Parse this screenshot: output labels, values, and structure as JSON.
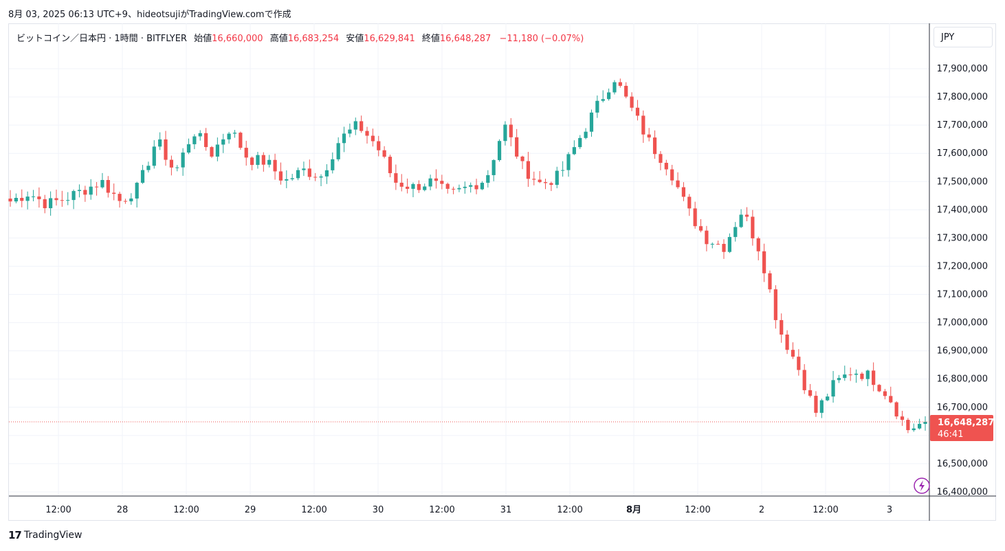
{
  "caption": "8月 03, 2025 06:13 UTC+9、hideotsujiがTradingView.comで作成",
  "legend": {
    "symbol": "ビットコイン／日本円 · 1時間 · BITFLYER",
    "open_label": "始値",
    "open": "16,660,000",
    "high_label": "高値",
    "high": "16,683,254",
    "low_label": "安値",
    "low": "16,629,841",
    "close_label": "終値",
    "close": "16,648,287",
    "change": "−11,180 (−0.07%)"
  },
  "currency": "JPY",
  "price_tag": {
    "price": "16,648,287",
    "countdown": "46:41"
  },
  "footer": {
    "brand": "TradingView"
  },
  "colors": {
    "up": "#26a69a",
    "down": "#ef5350",
    "grid": "#f0f3fa",
    "text": "#131722",
    "tag": "#ef5350",
    "flash": "#9c27b0"
  },
  "chart_data": {
    "type": "candlestick",
    "currency": "JPY",
    "interval": "1時間",
    "exchange": "BITFLYER",
    "ylim": [
      16400000,
      17950000
    ],
    "y_ticks": [
      "16,400,000",
      "16,500,000",
      "16,600,000",
      "16,700,000",
      "16,800,000",
      "16,900,000",
      "17,000,000",
      "17,100,000",
      "17,200,000",
      "17,300,000",
      "17,400,000",
      "17,500,000",
      "17,600,000",
      "17,700,000",
      "17,800,000",
      "17,900,000"
    ],
    "y_tick_values": [
      16400000,
      16500000,
      16600000,
      16700000,
      16800000,
      16900000,
      17000000,
      17100000,
      17200000,
      17300000,
      17400000,
      17500000,
      17600000,
      17700000,
      17800000,
      17900000
    ],
    "x_tick_labels": [
      "12:00",
      "28",
      "12:00",
      "29",
      "12:00",
      "30",
      "12:00",
      "31",
      "12:00",
      "8月",
      "12:00",
      "2",
      "12:00",
      "3"
    ],
    "x_tick_bold": [
      false,
      false,
      false,
      false,
      false,
      false,
      false,
      false,
      false,
      true,
      false,
      false,
      false,
      false
    ],
    "last_price": 16648287,
    "anchors": [
      17430000,
      17460000,
      17420000,
      17440000,
      17470000,
      17500000,
      17430000,
      17480000,
      17650000,
      17530000,
      17680000,
      17600000,
      17690000,
      17580000,
      17570000,
      17500000,
      17540000,
      17520000,
      17650000,
      17700000,
      17630000,
      17500000,
      17480000,
      17500000,
      17450000,
      17480000,
      17510000,
      17700000,
      17550000,
      17490000,
      17520000,
      17640000,
      17760000,
      17870000,
      17750000,
      17630000,
      17550000,
      17400000,
      17300000,
      17270000,
      17400000,
      17250000,
      16980000,
      16850000,
      16680000,
      16780000,
      16830000,
      16810000,
      16740000,
      16620000,
      16648287
    ]
  }
}
